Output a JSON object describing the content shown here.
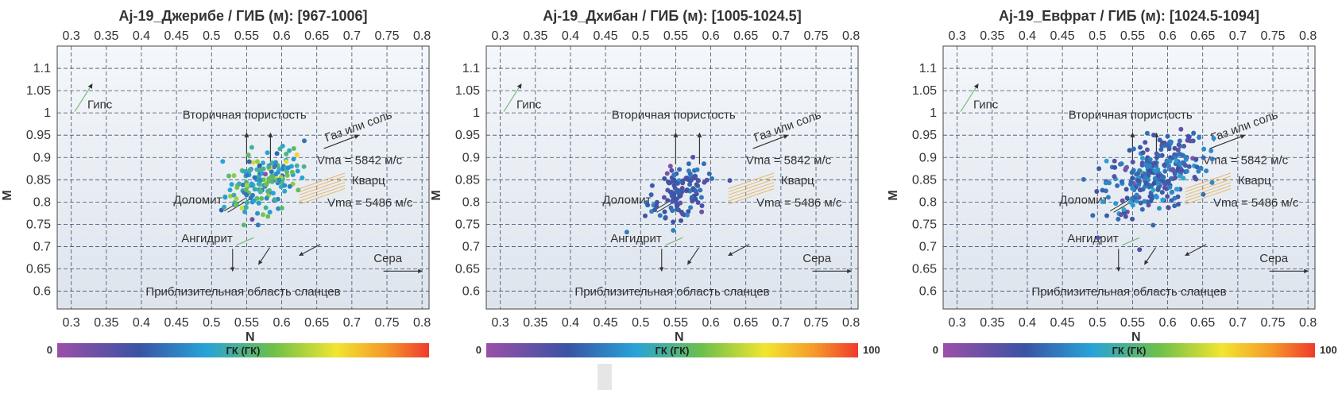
{
  "chart_data": [
    {
      "type": "scatter",
      "title": "Aj-19_Джерибе / ГИБ (м): [967-1006]",
      "xlabel": "N",
      "ylabel": "M",
      "xlim": [
        0.28,
        0.81
      ],
      "ylim": [
        0.56,
        1.15
      ],
      "x_ticks": [
        "0.3",
        "0.35",
        "0.4",
        "0.45",
        "0.5",
        "0.55",
        "0.6",
        "0.65",
        "0.7",
        "0.75",
        "0.8"
      ],
      "y_ticks": [
        "0.6",
        "0.65",
        "0.7",
        "0.75",
        "0.8",
        "0.85",
        "0.9",
        "0.95",
        "1",
        "1.05",
        "1.1"
      ],
      "grid": true,
      "colorbar": {
        "label": "ГК (ГК)",
        "min": "0",
        "max": ""
      },
      "annotations": {
        "gypsum": "Гипс",
        "secondary": "Вторичная пористость",
        "gas": "Газ или соль",
        "vma1": "Vma = 5842 м/с",
        "quartz": "Кварц",
        "vma2": "Vma = 5486 м/с",
        "dolomite": "Доломит",
        "anhydrite": "Ангидрит",
        "sulfur": "Сера",
        "shale": "Приблизительная область сланцев"
      },
      "series": [
        {
          "center": [
            0.575,
            0.845
          ],
          "spread": [
            0.028,
            0.035
          ],
          "count": 170,
          "gk_mean": 45,
          "gk_spread": 12
        }
      ]
    },
    {
      "type": "scatter",
      "title": "Aj-19_Дхибан / ГИБ (м): [1005-1024.5]",
      "xlabel": "N",
      "ylabel": "M",
      "xlim": [
        0.28,
        0.81
      ],
      "ylim": [
        0.56,
        1.15
      ],
      "x_ticks": [
        "0.3",
        "0.35",
        "0.4",
        "0.45",
        "0.5",
        "0.55",
        "0.6",
        "0.65",
        "0.7",
        "0.75",
        "0.8"
      ],
      "y_ticks": [
        "0.6",
        "0.65",
        "0.7",
        "0.75",
        "0.8",
        "0.85",
        "0.9",
        "0.95",
        "1",
        "1.05",
        "1.1"
      ],
      "grid": true,
      "colorbar": {
        "label": "ГК (ГК)",
        "min": "0",
        "max": "100"
      },
      "annotations": {
        "gypsum": "Гипс",
        "secondary": "Вторичная пористость",
        "gas": "Газ или соль",
        "vma1": "Vma = 5842 м/с",
        "quartz": "Кварц",
        "vma2": "Vma = 5486 м/с",
        "dolomite": "Доломит",
        "anhydrite": "Ангидрит",
        "sulfur": "Сера",
        "shale": "Приблизительная область сланцев"
      },
      "series": [
        {
          "center": [
            0.555,
            0.82
          ],
          "spread": [
            0.022,
            0.03
          ],
          "count": 120,
          "gk_mean": 22,
          "gk_spread": 6
        }
      ]
    },
    {
      "type": "scatter",
      "title": "Aj-19_Евфрат / ГИБ (м): [1024.5-1094]",
      "xlabel": "N",
      "ylabel": "M",
      "xlim": [
        0.28,
        0.81
      ],
      "ylim": [
        0.56,
        1.15
      ],
      "x_ticks": [
        "0.3",
        "0.35",
        "0.4",
        "0.45",
        "0.5",
        "0.55",
        "0.6",
        "0.65",
        "0.7",
        "0.75",
        "0.8"
      ],
      "y_ticks": [
        "0.6",
        "0.65",
        "0.7",
        "0.75",
        "0.8",
        "0.85",
        "0.9",
        "0.95",
        "1",
        "1.05",
        "1.1"
      ],
      "grid": true,
      "colorbar": {
        "label": "ГК (ГК)",
        "min": "0",
        "max": "100"
      },
      "annotations": {
        "gypsum": "Гипс",
        "secondary": "Вторичная пористость",
        "gas": "Газ или соль",
        "vma1": "Vma = 5842 м/с",
        "quartz": "Кварц",
        "vma2": "Vma = 5486 м/с",
        "dolomite": "Доломит",
        "anhydrite": "Ангидрит",
        "sulfur": "Сера",
        "shale": "Приблизительная область сланцев"
      },
      "series": [
        {
          "center": [
            0.58,
            0.865
          ],
          "spread": [
            0.035,
            0.04
          ],
          "count": 300,
          "gk_mean": 25,
          "gk_spread": 8
        }
      ]
    }
  ]
}
